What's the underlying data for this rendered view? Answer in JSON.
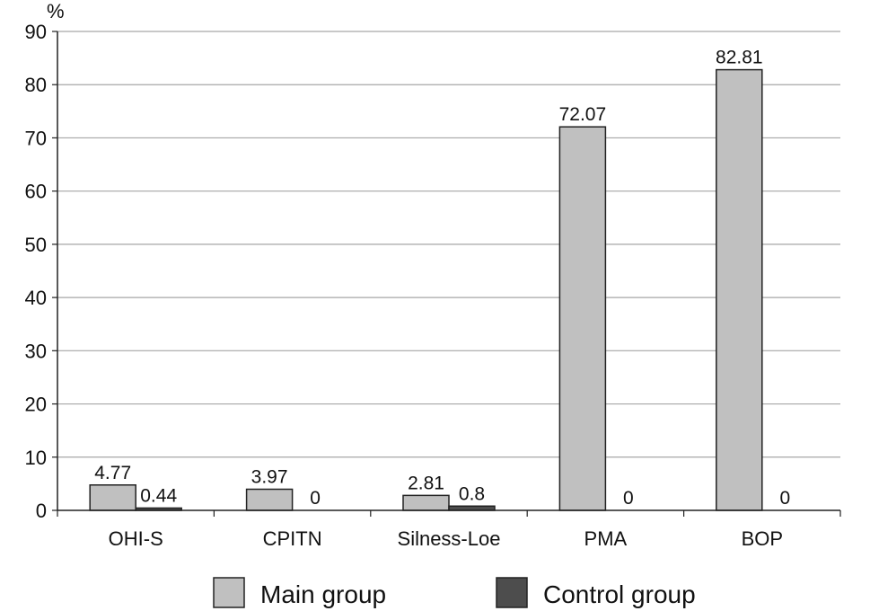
{
  "chart_data": {
    "type": "bar",
    "ylabel": "%",
    "ylim": [
      0,
      90
    ],
    "yticks": [
      0,
      10,
      20,
      30,
      40,
      50,
      60,
      70,
      80,
      90
    ],
    "grid": true,
    "legend_position": "bottom",
    "categories": [
      "OHI-S",
      "CPITN",
      "Silness-Loe",
      "PMA",
      "BOP"
    ],
    "series": [
      {
        "name": "Main group",
        "color": "#c0c0c0",
        "values": [
          4.77,
          3.97,
          2.81,
          72.07,
          82.81
        ],
        "labels": [
          "4.77",
          "3.97",
          "2.81",
          "72.07",
          "82.81"
        ]
      },
      {
        "name": "Control group",
        "color": "#4d4d4d",
        "values": [
          0.44,
          0,
          0.8,
          0,
          0
        ],
        "labels": [
          "0.44",
          "0",
          "0.8",
          "0",
          "0"
        ]
      }
    ]
  }
}
